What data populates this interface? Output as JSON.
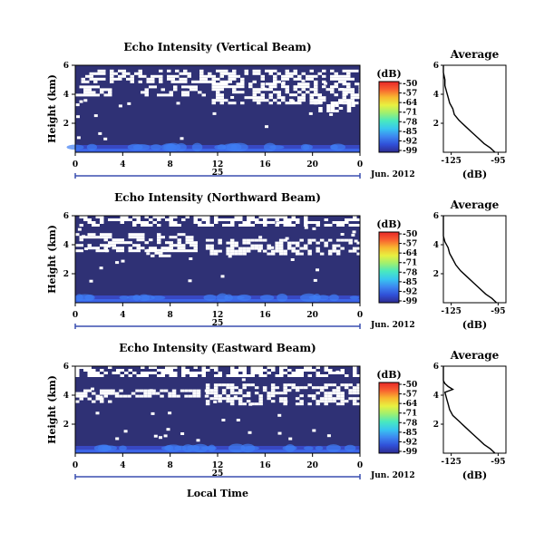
{
  "colors": {
    "background": "#ffffff",
    "panel_fill": "#2f3175",
    "gap": "#ffffff",
    "axis": "#000000",
    "date_bar": "#3a4fb0",
    "colorbar": [
      "#2e2b90",
      "#3050d8",
      "#3d86f0",
      "#38c6f0",
      "#48e8c0",
      "#9ef070",
      "#e8f040",
      "#f8b830",
      "#f86030",
      "#e82828"
    ]
  },
  "colorbar_unit": "(dB)",
  "colorbar_ticks": [
    "-50",
    "-57",
    "-64",
    "-71",
    "-78",
    "-85",
    "-92",
    "-99"
  ],
  "x_ticks": [
    "0",
    "4",
    "8",
    "12",
    "16",
    "20",
    "0"
  ],
  "date_day": "25",
  "date_month": "Jun. 2012",
  "xlabel": "Local Time",
  "chart_data": [
    {
      "type": "heatmap",
      "title": "Echo Intensity (Vertical Beam)",
      "ylabel": "Height (km)",
      "yticks": [
        "6",
        "4",
        "2"
      ],
      "ylim": [
        0,
        6
      ],
      "xlim": [
        0,
        24
      ],
      "x_unit": "Local Time (h)",
      "value_unit": "dB",
      "clim": [
        -99,
        -50
      ],
      "gaps": [
        {
          "t0": 0.5,
          "t1": 23.8,
          "h0": 4.8,
          "h1": 5.7
        },
        {
          "t0": 0.0,
          "t1": 3.0,
          "h0": 3.9,
          "h1": 4.6
        },
        {
          "t0": 5.5,
          "t1": 11.0,
          "h0": 4.0,
          "h1": 4.6
        },
        {
          "t0": 11.5,
          "t1": 24.0,
          "h0": 3.4,
          "h1": 4.8
        },
        {
          "t0": 20.5,
          "t1": 23.5,
          "h0": 2.9,
          "h1": 3.5
        }
      ],
      "profile": {
        "title": "Average",
        "xlabel": "(dB)",
        "xticks": [
          "-125",
          "-95"
        ],
        "xlim": [
          -130,
          -90
        ],
        "yticks": [
          "6",
          "4",
          "2"
        ],
        "ylim": [
          0,
          6
        ],
        "height_km": [
          0,
          0.3,
          0.6,
          1.0,
          1.4,
          1.8,
          2.2,
          2.6,
          3.0,
          3.4,
          3.8,
          4.2,
          4.6,
          5.0,
          5.5,
          6.0
        ],
        "value_db": [
          -97,
          -100,
          -104,
          -108,
          -112,
          -116,
          -120,
          -123,
          -124,
          -126,
          -127,
          -128,
          -129,
          -129,
          -130,
          -130
        ]
      }
    },
    {
      "type": "heatmap",
      "title": "Echo Intensity (Northward Beam)",
      "ylabel": "Height (km)",
      "yticks": [
        "6",
        "4",
        "2"
      ],
      "ylim": [
        0,
        6
      ],
      "xlim": [
        0,
        24
      ],
      "x_unit": "Local Time (h)",
      "value_unit": "dB",
      "clim": [
        -99,
        -50
      ],
      "gaps": [
        {
          "t0": 0.0,
          "t1": 24.0,
          "h0": 5.4,
          "h1": 6.0
        },
        {
          "t0": 0.0,
          "t1": 10.0,
          "h0": 3.6,
          "h1": 4.8
        },
        {
          "t0": 11.0,
          "t1": 24.0,
          "h0": 3.3,
          "h1": 4.4
        },
        {
          "t0": 6.0,
          "t1": 8.0,
          "h0": 3.2,
          "h1": 3.7
        }
      ],
      "profile": {
        "title": "Average",
        "xlabel": "(dB)",
        "xticks": [
          "-125",
          "-95"
        ],
        "xlim": [
          -130,
          -90
        ],
        "yticks": [
          "6",
          "4",
          "2"
        ],
        "ylim": [
          0,
          6
        ],
        "height_km": [
          0,
          0.3,
          0.6,
          1.0,
          1.4,
          1.8,
          2.2,
          2.6,
          3.0,
          3.4,
          3.8,
          4.2,
          4.6,
          5.0,
          5.5,
          6.0
        ],
        "value_db": [
          -96,
          -99,
          -103,
          -107,
          -111,
          -115,
          -119,
          -122,
          -124,
          -126,
          -127,
          -129,
          -130,
          -130,
          -130,
          -130
        ]
      }
    },
    {
      "type": "heatmap",
      "title": "Echo Intensity (Eastward Beam)",
      "ylabel": "Height (km)",
      "yticks": [
        "6",
        "4",
        "2"
      ],
      "ylim": [
        0,
        6
      ],
      "xlim": [
        0,
        24
      ],
      "x_unit": "Local Time (h)",
      "value_unit": "dB",
      "clim": [
        -99,
        -50
      ],
      "gaps": [
        {
          "t0": 0.0,
          "t1": 24.0,
          "h0": 5.3,
          "h1": 6.0
        },
        {
          "t0": 0.0,
          "t1": 3.0,
          "h0": 3.6,
          "h1": 4.4
        },
        {
          "t0": 3.0,
          "t1": 11.0,
          "h0": 3.9,
          "h1": 4.4
        },
        {
          "t0": 11.0,
          "t1": 24.0,
          "h0": 3.4,
          "h1": 4.8
        }
      ],
      "profile": {
        "title": "Average",
        "xlabel": "(dB)",
        "xticks": [
          "-125",
          "-95"
        ],
        "xlim": [
          -130,
          -90
        ],
        "yticks": [
          "6",
          "4",
          "2"
        ],
        "ylim": [
          0,
          6
        ],
        "height_km": [
          0,
          0.3,
          0.6,
          1.0,
          1.4,
          1.8,
          2.2,
          2.6,
          3.0,
          3.4,
          3.8,
          4.2,
          4.4,
          4.6,
          4.8,
          5.0,
          5.5,
          6.0
        ],
        "value_db": [
          -97,
          -100,
          -104,
          -108,
          -112,
          -116,
          -120,
          -124,
          -126,
          -127,
          -128,
          -129,
          -124,
          -127,
          -129,
          -130,
          -130,
          -130
        ]
      }
    }
  ]
}
